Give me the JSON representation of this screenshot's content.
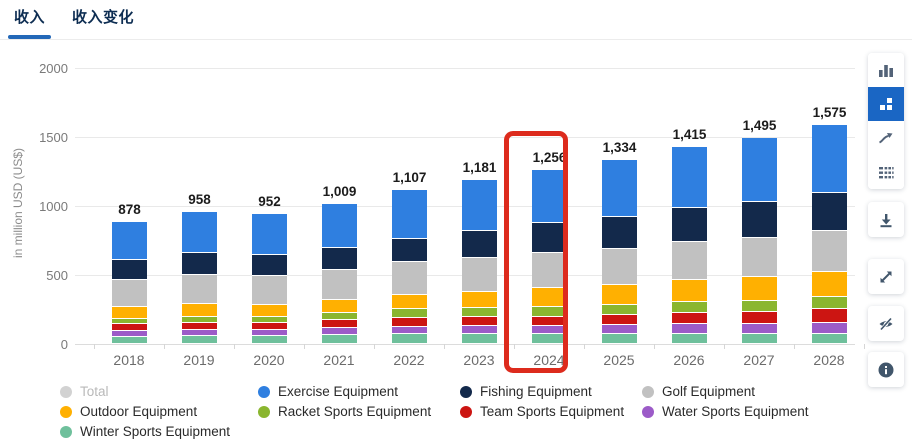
{
  "tabs": [
    {
      "label": "收入",
      "active": true
    },
    {
      "label": "收入变化",
      "active": false
    }
  ],
  "chart_data": {
    "type": "bar",
    "stacked": true,
    "title": "",
    "xlabel": "",
    "ylabel": "in million USD (US$)",
    "ylim": [
      0,
      2000
    ],
    "yticks": [
      0,
      500,
      1000,
      1500,
      2000
    ],
    "ytick_labels": [
      "0",
      "500",
      "1000",
      "1500",
      "2000"
    ],
    "grid": true,
    "categories": [
      "2018",
      "2019",
      "2020",
      "2021",
      "2022",
      "2023",
      "2024",
      "2025",
      "2026",
      "2027",
      "2028"
    ],
    "totals": [
      878,
      958,
      952,
      1009,
      1107,
      1181,
      1256,
      1334,
      1415,
      1495,
      1575
    ],
    "total_labels": [
      "878",
      "958",
      "952",
      "1,009",
      "1,107",
      "1,181",
      "1,256",
      "1,334",
      "1,415",
      "1,495",
      "1,575"
    ],
    "highlighted_category": "2024",
    "highlight_color": "#dd2b1d",
    "series": [
      {
        "name": "Winter Sports Equipment",
        "color": "#6fc09c",
        "values": [
          52,
          60,
          59,
          65,
          73,
          73,
          74,
          73,
          74,
          73,
          73
        ]
      },
      {
        "name": "Water Sports Equipment",
        "color": "#9c5bc8",
        "values": [
          42,
          46,
          46,
          48,
          53,
          57,
          61,
          65,
          69,
          74,
          78
        ]
      },
      {
        "name": "Team Sports Equipment",
        "color": "#cc1512",
        "values": [
          50,
          54,
          54,
          57,
          63,
          64,
          66,
          74,
          82,
          90,
          98
        ]
      },
      {
        "name": "Racket Sports Equipment",
        "color": "#8ab62f",
        "values": [
          38,
          46,
          46,
          54,
          65,
          67,
          69,
          73,
          77,
          81,
          85
        ]
      },
      {
        "name": "Outdoor Equipment",
        "color": "#ffb001",
        "values": [
          86,
          91,
          90,
          93,
          98,
          117,
          136,
          148,
          160,
          172,
          184
        ]
      },
      {
        "name": "Golf Equipment",
        "color": "#c1c1c1",
        "values": [
          197,
          212,
          210,
          221,
          239,
          245,
          250,
          262,
          273,
          285,
          297
        ]
      },
      {
        "name": "Fishing Equipment",
        "color": "#13294b",
        "values": [
          148,
          156,
          155,
          159,
          168,
          194,
          220,
          233,
          247,
          260,
          274
        ]
      },
      {
        "name": "Exercise Equipment",
        "color": "#2f7fe0",
        "values": [
          265,
          293,
          292,
          312,
          348,
          364,
          380,
          406,
          433,
          460,
          486
        ]
      }
    ]
  },
  "legend": {
    "items": [
      {
        "label": "Total",
        "color": "#d2d2d2",
        "muted": true
      },
      {
        "label": "Exercise Equipment",
        "color": "#2f7fe0",
        "muted": false
      },
      {
        "label": "Fishing Equipment",
        "color": "#13294b",
        "muted": false
      },
      {
        "label": "Golf Equipment",
        "color": "#c1c1c1",
        "muted": false
      },
      {
        "label": "Outdoor Equipment",
        "color": "#ffb001",
        "muted": false
      },
      {
        "label": "Racket Sports Equipment",
        "color": "#8ab62f",
        "muted": false
      },
      {
        "label": "Team Sports Equipment",
        "color": "#cc1512",
        "muted": false
      },
      {
        "label": "Water Sports Equipment",
        "color": "#9c5bc8",
        "muted": false
      },
      {
        "label": "Winter Sports Equipment",
        "color": "#6fc09c",
        "muted": false
      }
    ]
  },
  "sidebar": {
    "active_color": "#1a66c4",
    "icon_color": "#536378",
    "chart_type_buttons": [
      {
        "icon": "column-chart-icon",
        "active": false
      },
      {
        "icon": "stacked-chart-icon",
        "active": true
      },
      {
        "icon": "line-chart-icon",
        "active": false
      },
      {
        "icon": "table-view-icon",
        "active": false
      }
    ],
    "action_buttons": [
      {
        "icon": "download-icon"
      },
      {
        "icon": "fullscreen-icon"
      },
      {
        "icon": "hide-icon"
      },
      {
        "icon": "info-icon"
      }
    ]
  }
}
